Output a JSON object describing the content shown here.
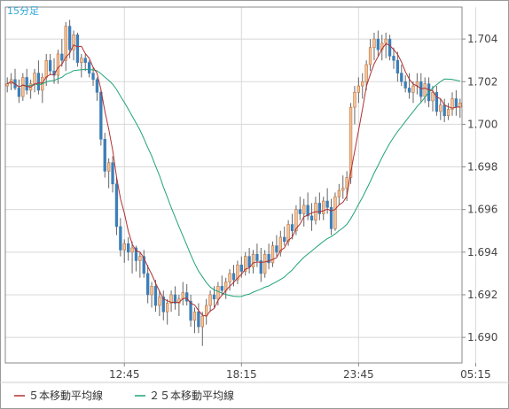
{
  "chart_data": {
    "type": "candlestick",
    "period_label": "15分足",
    "y_ticks": [
      1.704,
      1.702,
      1.7,
      1.698,
      1.696,
      1.694,
      1.692,
      1.69
    ],
    "y_tick_labels": [
      "1.704",
      "1.702",
      "1.700",
      "1.698",
      "1.696",
      "1.694",
      "1.692",
      "1.690"
    ],
    "ylim": [
      1.6888,
      1.7055
    ],
    "x_ticks": [
      {
        "index": 30,
        "label": "12:45"
      },
      {
        "index": 60,
        "label": "18:15"
      },
      {
        "index": 90,
        "label": "23:45"
      },
      {
        "index": 120,
        "label": "05:15"
      }
    ],
    "grid": true,
    "colors": {
      "up_candle": "#f2c49b",
      "up_candle_border": "#c0703a",
      "down_candle": "#3d7fb8",
      "wick": "#666666",
      "ma5": "#b03030",
      "ma25": "#1fa37a",
      "grid": "#d8d8d8",
      "axis": "#888888"
    },
    "legend": [
      {
        "label": "５本移動平均線",
        "color": "#b03030"
      },
      {
        "label": "２５本移動平均線",
        "color": "#1fa37a"
      }
    ],
    "legend_position": "bottom-left",
    "ohlc": [
      [
        1.7018,
        1.7022,
        1.7015,
        1.7019
      ],
      [
        1.7019,
        1.7024,
        1.7016,
        1.7021
      ],
      [
        1.7021,
        1.7026,
        1.7016,
        1.7017
      ],
      [
        1.7017,
        1.7021,
        1.701,
        1.7013
      ],
      [
        1.7013,
        1.7024,
        1.7011,
        1.7022
      ],
      [
        1.7022,
        1.7026,
        1.7014,
        1.7016
      ],
      [
        1.7016,
        1.7021,
        1.7012,
        1.7019
      ],
      [
        1.7019,
        1.7026,
        1.7015,
        1.7024
      ],
      [
        1.7024,
        1.703,
        1.7014,
        1.7016
      ],
      [
        1.7016,
        1.7024,
        1.701,
        1.7022
      ],
      [
        1.7022,
        1.7033,
        1.7018,
        1.703
      ],
      [
        1.703,
        1.7033,
        1.7023,
        1.7025
      ],
      [
        1.7025,
        1.7031,
        1.7019,
        1.7023
      ],
      [
        1.7023,
        1.7035,
        1.7019,
        1.7033
      ],
      [
        1.7033,
        1.704,
        1.7027,
        1.703
      ],
      [
        1.703,
        1.7048,
        1.7025,
        1.7046
      ],
      [
        1.7046,
        1.7049,
        1.7031,
        1.7035
      ],
      [
        1.7035,
        1.7044,
        1.703,
        1.7042
      ],
      [
        1.7042,
        1.7043,
        1.7027,
        1.7029
      ],
      [
        1.7029,
        1.7033,
        1.7022,
        1.7031
      ],
      [
        1.7031,
        1.7033,
        1.7025,
        1.7029
      ],
      [
        1.7029,
        1.703,
        1.7022,
        1.7024
      ],
      [
        1.7024,
        1.7027,
        1.7018,
        1.7021
      ],
      [
        1.7021,
        1.7022,
        1.7011,
        1.7015
      ],
      [
        1.7015,
        1.7016,
        1.699,
        1.6993
      ],
      [
        1.6993,
        1.6996,
        1.6975,
        1.6978
      ],
      [
        1.6978,
        1.6984,
        1.697,
        1.6982
      ],
      [
        1.6982,
        1.6985,
        1.6968,
        1.6972
      ],
      [
        1.6972,
        1.6975,
        1.6948,
        1.6952
      ],
      [
        1.6952,
        1.6956,
        1.6938,
        1.6941
      ],
      [
        1.6941,
        1.6946,
        1.6935,
        1.6944
      ],
      [
        1.6944,
        1.6947,
        1.6936,
        1.694
      ],
      [
        1.694,
        1.6945,
        1.693,
        1.6942
      ],
      [
        1.6942,
        1.6943,
        1.6931,
        1.6936
      ],
      [
        1.6936,
        1.694,
        1.6928,
        1.6938
      ],
      [
        1.6938,
        1.6941,
        1.6928,
        1.693
      ],
      [
        1.693,
        1.6934,
        1.6916,
        1.692
      ],
      [
        1.692,
        1.6926,
        1.6914,
        1.6924
      ],
      [
        1.6924,
        1.6927,
        1.6912,
        1.6915
      ],
      [
        1.6915,
        1.6922,
        1.691,
        1.6919
      ],
      [
        1.6919,
        1.6922,
        1.6908,
        1.6912
      ],
      [
        1.6912,
        1.6918,
        1.6906,
        1.6916
      ],
      [
        1.6916,
        1.6922,
        1.6912,
        1.692
      ],
      [
        1.692,
        1.6924,
        1.6913,
        1.6916
      ],
      [
        1.6916,
        1.692,
        1.691,
        1.6918
      ],
      [
        1.6918,
        1.6926,
        1.6915,
        1.6921
      ],
      [
        1.6921,
        1.6925,
        1.6915,
        1.6917
      ],
      [
        1.6917,
        1.692,
        1.6905,
        1.6908
      ],
      [
        1.6908,
        1.6914,
        1.6902,
        1.6912
      ],
      [
        1.6912,
        1.6916,
        1.6902,
        1.6905
      ],
      [
        1.6905,
        1.6912,
        1.6896,
        1.691
      ],
      [
        1.691,
        1.6918,
        1.6906,
        1.6915
      ],
      [
        1.6915,
        1.6922,
        1.6912,
        1.692
      ],
      [
        1.692,
        1.6924,
        1.6914,
        1.6918
      ],
      [
        1.6918,
        1.6926,
        1.6915,
        1.6924
      ],
      [
        1.6924,
        1.6929,
        1.692,
        1.6922
      ],
      [
        1.6922,
        1.6928,
        1.6918,
        1.6926
      ],
      [
        1.6926,
        1.6932,
        1.6922,
        1.693
      ],
      [
        1.693,
        1.6934,
        1.6924,
        1.6927
      ],
      [
        1.6927,
        1.6936,
        1.6925,
        1.6934
      ],
      [
        1.6934,
        1.6938,
        1.6928,
        1.6931
      ],
      [
        1.6931,
        1.694,
        1.6929,
        1.6938
      ],
      [
        1.6938,
        1.6942,
        1.693,
        1.6933
      ],
      [
        1.6933,
        1.6941,
        1.693,
        1.6939
      ],
      [
        1.6939,
        1.6944,
        1.6933,
        1.6936
      ],
      [
        1.6936,
        1.6942,
        1.6926,
        1.693
      ],
      [
        1.693,
        1.6941,
        1.6928,
        1.6939
      ],
      [
        1.6939,
        1.6944,
        1.6932,
        1.6935
      ],
      [
        1.6935,
        1.6945,
        1.6933,
        1.6943
      ],
      [
        1.6943,
        1.6948,
        1.6938,
        1.694
      ],
      [
        1.694,
        1.695,
        1.6938,
        1.6947
      ],
      [
        1.6947,
        1.6952,
        1.6943,
        1.6945
      ],
      [
        1.6945,
        1.6955,
        1.6943,
        1.6953
      ],
      [
        1.6953,
        1.6958,
        1.6946,
        1.695
      ],
      [
        1.695,
        1.6962,
        1.6948,
        1.696
      ],
      [
        1.696,
        1.6966,
        1.6955,
        1.6958
      ],
      [
        1.6958,
        1.6965,
        1.6952,
        1.6962
      ],
      [
        1.6962,
        1.6968,
        1.6955,
        1.6957
      ],
      [
        1.6957,
        1.6963,
        1.695,
        1.6955
      ],
      [
        1.6955,
        1.6966,
        1.6953,
        1.6963
      ],
      [
        1.6963,
        1.6968,
        1.6955,
        1.6958
      ],
      [
        1.6958,
        1.6966,
        1.6955,
        1.6964
      ],
      [
        1.6964,
        1.697,
        1.6958,
        1.6961
      ],
      [
        1.6961,
        1.6965,
        1.6948,
        1.6951
      ],
      [
        1.6951,
        1.6968,
        1.695,
        1.6966
      ],
      [
        1.6966,
        1.6972,
        1.6962,
        1.6969
      ],
      [
        1.6969,
        1.6976,
        1.6965,
        1.697
      ],
      [
        1.697,
        1.6978,
        1.6964,
        1.6975
      ],
      [
        1.6975,
        1.701,
        1.6972,
        1.7008
      ],
      [
        1.7008,
        1.7018,
        1.7,
        1.7015
      ],
      [
        1.7015,
        1.7022,
        1.701,
        1.7018
      ],
      [
        1.7018,
        1.7024,
        1.7012,
        1.702
      ],
      [
        1.702,
        1.703,
        1.7016,
        1.7028
      ],
      [
        1.7028,
        1.704,
        1.7025,
        1.7036
      ],
      [
        1.7036,
        1.7043,
        1.703,
        1.704
      ],
      [
        1.704,
        1.7044,
        1.7032,
        1.7035
      ],
      [
        1.7035,
        1.7042,
        1.703,
        1.7038
      ],
      [
        1.7038,
        1.7043,
        1.7031,
        1.704
      ],
      [
        1.704,
        1.7042,
        1.703,
        1.7032
      ],
      [
        1.7032,
        1.7036,
        1.7026,
        1.703
      ],
      [
        1.703,
        1.7034,
        1.702,
        1.7024
      ],
      [
        1.7024,
        1.7028,
        1.7018,
        1.702
      ],
      [
        1.702,
        1.7023,
        1.7015,
        1.7017
      ],
      [
        1.7017,
        1.7024,
        1.7012,
        1.7015
      ],
      [
        1.7015,
        1.702,
        1.701,
        1.7018
      ],
      [
        1.7018,
        1.7024,
        1.7014,
        1.702
      ],
      [
        1.702,
        1.7024,
        1.701,
        1.7013
      ],
      [
        1.7013,
        1.7022,
        1.701,
        1.7019
      ],
      [
        1.7019,
        1.7022,
        1.7008,
        1.7011
      ],
      [
        1.7011,
        1.7018,
        1.7006,
        1.7015
      ],
      [
        1.7015,
        1.7018,
        1.7004,
        1.7006
      ],
      [
        1.7006,
        1.7012,
        1.7002,
        1.7009
      ],
      [
        1.7009,
        1.7012,
        1.7001,
        1.7004
      ],
      [
        1.7004,
        1.701,
        1.7002,
        1.7007
      ],
      [
        1.7007,
        1.7015,
        1.7004,
        1.7012
      ],
      [
        1.7012,
        1.7016,
        1.7004,
        1.7008
      ],
      [
        1.7008,
        1.7012,
        1.7003,
        1.701
      ]
    ]
  }
}
